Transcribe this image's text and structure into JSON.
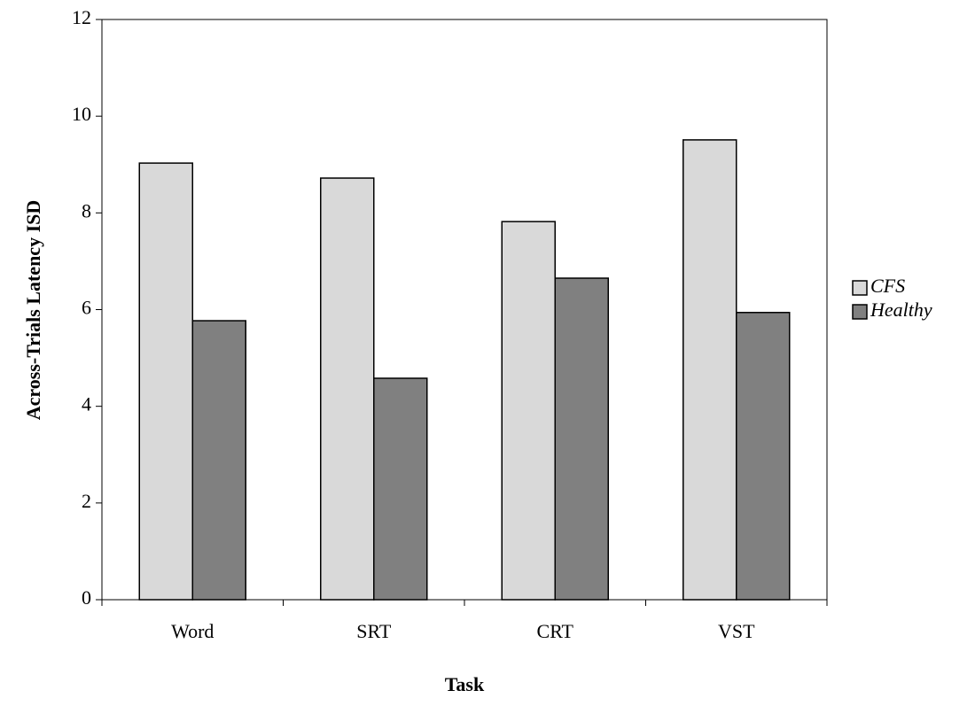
{
  "chart_data": {
    "type": "bar",
    "x_label": "Task",
    "y_label": "Across-Trials Latency ISD",
    "categories": [
      "Word",
      "SRT",
      "CRT",
      "VST"
    ],
    "series": [
      {
        "name": "CFS",
        "color": "#d9d9d9",
        "values": [
          9.03,
          8.72,
          7.82,
          9.51
        ]
      },
      {
        "name": "Healthy",
        "color": "#808080",
        "values": [
          5.77,
          4.58,
          6.65,
          5.94
        ]
      }
    ],
    "ylim": [
      0,
      12
    ],
    "yticks": [
      0,
      2,
      4,
      6,
      8,
      10,
      12
    ],
    "grid": false,
    "legend": "right"
  }
}
